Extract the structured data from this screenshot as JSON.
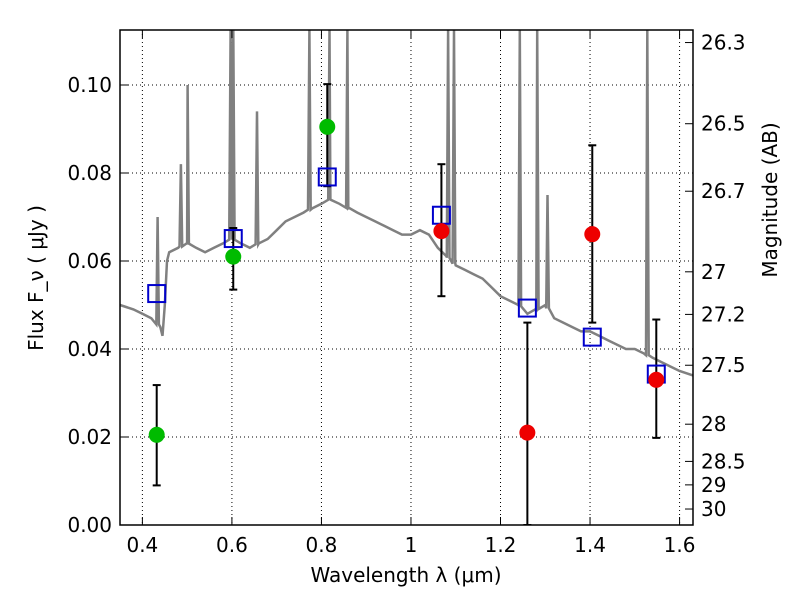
{
  "chart_data": {
    "type": "scatter",
    "xlabel": "Wavelength  λ (μm)",
    "ylabel": "Flux  F_ν  ( μJy )",
    "y2label": "Magnitude (AB)",
    "xlim": [
      0.35,
      1.63
    ],
    "ylim": [
      0.0,
      0.1125
    ],
    "x_ticks": [
      0.4,
      0.6,
      0.8,
      1.0,
      1.2,
      1.4,
      1.6
    ],
    "x_tick_labels": [
      "0.4",
      "0.6",
      "0.8",
      "1",
      "1.2",
      "1.4",
      "1.6"
    ],
    "y_ticks": [
      0.0,
      0.02,
      0.04,
      0.06,
      0.08,
      0.1
    ],
    "y_tick_labels": [
      "0.00",
      "0.02",
      "0.04",
      "0.06",
      "0.08",
      "0.10"
    ],
    "y2_ticks": [
      26.3,
      26.5,
      26.7,
      27,
      27.2,
      27.5,
      28,
      28.5,
      29,
      30
    ],
    "y2_tick_labels": [
      "26.3",
      "26.5",
      "26.7",
      "27",
      "27.2",
      "27.5",
      "28",
      "28.5",
      "29",
      "30"
    ],
    "grid": true,
    "colors": {
      "model_line": "#808080",
      "green_points": "#00bb00",
      "red_points": "#ee0000",
      "model_squares": "#0000cc",
      "errorbar": "#000000"
    },
    "series": [
      {
        "name": "model spectrum",
        "kind": "line",
        "x": [
          0.35,
          0.38,
          0.4,
          0.42,
          0.44,
          0.445,
          0.45,
          0.455,
          0.46,
          0.48,
          0.5,
          0.52,
          0.54,
          0.56,
          0.58,
          0.6,
          0.62,
          0.64,
          0.66,
          0.68,
          0.7,
          0.72,
          0.74,
          0.76,
          0.78,
          0.8,
          0.82,
          0.84,
          0.86,
          0.88,
          0.9,
          0.92,
          0.94,
          0.96,
          0.98,
          1.0,
          1.02,
          1.04,
          1.06,
          1.08,
          1.1,
          1.12,
          1.14,
          1.16,
          1.18,
          1.2,
          1.22,
          1.24,
          1.26,
          1.28,
          1.3,
          1.32,
          1.34,
          1.36,
          1.38,
          1.4,
          1.42,
          1.44,
          1.46,
          1.48,
          1.5,
          1.52,
          1.54,
          1.56,
          1.58,
          1.6,
          1.63
        ],
        "y": [
          0.05,
          0.049,
          0.048,
          0.047,
          0.045,
          0.043,
          0.05,
          0.06,
          0.062,
          0.063,
          0.064,
          0.063,
          0.062,
          0.063,
          0.064,
          0.065,
          0.064,
          0.063,
          0.064,
          0.065,
          0.067,
          0.069,
          0.07,
          0.071,
          0.072,
          0.073,
          0.074,
          0.073,
          0.072,
          0.071,
          0.07,
          0.069,
          0.068,
          0.067,
          0.066,
          0.066,
          0.067,
          0.066,
          0.063,
          0.061,
          0.059,
          0.058,
          0.057,
          0.056,
          0.054,
          0.052,
          0.051,
          0.05,
          0.048,
          0.049,
          0.05,
          0.047,
          0.046,
          0.045,
          0.044,
          0.044,
          0.043,
          0.042,
          0.041,
          0.04,
          0.04,
          0.039,
          0.038,
          0.037,
          0.036,
          0.035,
          0.034
        ],
        "emission_lines": [
          {
            "x": 0.434,
            "peak": 0.07
          },
          {
            "x": 0.486,
            "peak": 0.082
          },
          {
            "x": 0.501,
            "peak": 0.1
          },
          {
            "x": 0.597,
            "peak": 0.1125
          },
          {
            "x": 0.603,
            "peak": 0.1125
          },
          {
            "x": 0.656,
            "peak": 0.094
          },
          {
            "x": 0.773,
            "peak": 0.1125
          },
          {
            "x": 0.818,
            "peak": 0.1125
          },
          {
            "x": 0.858,
            "peak": 0.1125
          },
          {
            "x": 1.083,
            "peak": 0.1125
          },
          {
            "x": 1.096,
            "peak": 0.1125
          },
          {
            "x": 1.243,
            "peak": 0.1125
          },
          {
            "x": 1.282,
            "peak": 0.1125
          },
          {
            "x": 1.305,
            "peak": 0.075
          },
          {
            "x": 1.528,
            "peak": 0.1125
          }
        ]
      },
      {
        "name": "observed (green)",
        "kind": "errorbar",
        "x": [
          0.432,
          0.603,
          0.813
        ],
        "y": [
          0.0205,
          0.061,
          0.0905
        ],
        "yerr_low": [
          0.009,
          0.0535,
          0.077
        ],
        "yerr_high": [
          0.0318,
          0.0675,
          0.1002
        ]
      },
      {
        "name": "observed (red)",
        "kind": "errorbar",
        "x": [
          1.068,
          1.26,
          1.405,
          1.548
        ],
        "y": [
          0.0668,
          0.021,
          0.0661,
          0.033
        ],
        "yerr_low": [
          0.052,
          0.0,
          0.046,
          0.0198
        ],
        "yerr_high": [
          0.082,
          0.046,
          0.0863,
          0.0467
        ]
      },
      {
        "name": "model photometry",
        "kind": "squares",
        "x": [
          0.432,
          0.603,
          0.813,
          1.068,
          1.26,
          1.405,
          1.548
        ],
        "y": [
          0.0526,
          0.0651,
          0.0791,
          0.0704,
          0.0493,
          0.0427,
          0.0343
        ]
      }
    ]
  }
}
